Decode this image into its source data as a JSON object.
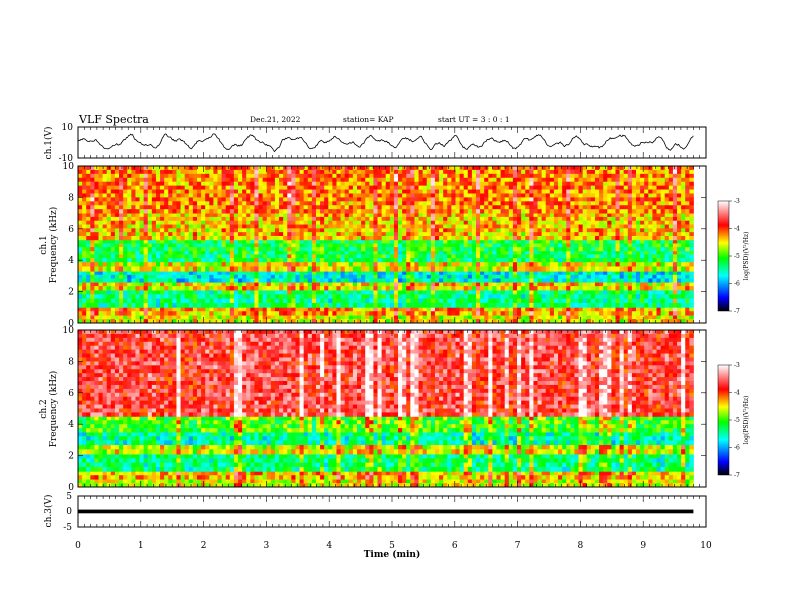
{
  "header": {
    "title": "VLF Spectra",
    "date": "Dec.21, 2022",
    "station": "station= KAP",
    "start": "start  UT =  3 : 0  : 1"
  },
  "chart_data": [
    {
      "id": "ch1-waveform",
      "type": "line",
      "ylabel": "ch.1(V)",
      "ylim": [
        -10,
        10
      ],
      "yticks": [
        "10",
        "-10"
      ],
      "xlim": [
        0,
        10
      ],
      "values_description_none": null,
      "series": [
        {
          "name": "ch.1",
          "color": "#000000",
          "mean": 0,
          "amplitude": 4
        }
      ]
    },
    {
      "id": "ch1-spectrogram",
      "type": "heatmap",
      "ylabel": "ch.1\nFrequency (kHz)",
      "ylabel_lines": [
        "ch.1",
        "Frequency (kHz)"
      ],
      "ylim": [
        0,
        10
      ],
      "yticks": [
        "0",
        "2",
        "4",
        "6",
        "8",
        "10"
      ],
      "xlim": [
        0,
        9.8
      ],
      "colorbar": {
        "label": "log(PSD)(V²/Hz)",
        "range": [
          -7,
          -3
        ],
        "ticks": [
          "-3",
          "-4",
          "-5",
          "-6",
          "-7"
        ]
      },
      "bands": [
        {
          "from": 0.0,
          "to": 0.5,
          "level": -4.6
        },
        {
          "from": 0.5,
          "to": 1.0,
          "level": -4.3
        },
        {
          "from": 1.0,
          "to": 2.1,
          "level": -5.4
        },
        {
          "from": 2.1,
          "to": 2.6,
          "level": -4.5
        },
        {
          "from": 2.6,
          "to": 3.3,
          "level": -5.7
        },
        {
          "from": 3.3,
          "to": 3.9,
          "level": -4.6
        },
        {
          "from": 3.9,
          "to": 4.6,
          "level": -5.3
        },
        {
          "from": 4.6,
          "to": 5.3,
          "level": -5.2
        },
        {
          "from": 5.3,
          "to": 7.0,
          "level": -4.4
        },
        {
          "from": 7.0,
          "to": 10.0,
          "level": -4.2
        }
      ]
    },
    {
      "id": "ch2-spectrogram",
      "type": "heatmap",
      "ylabel": "ch.2\nFrequency (kHz)",
      "ylabel_lines": [
        "ch.2",
        "Frequency (kHz)"
      ],
      "ylim": [
        0,
        10
      ],
      "yticks": [
        "0",
        "2",
        "4",
        "6",
        "8",
        "10"
      ],
      "xlim": [
        0,
        9.8
      ],
      "colorbar": {
        "label": "log(PSD)(V²/Hz)",
        "range": [
          -7,
          -3
        ],
        "ticks": [
          "-3",
          "-4",
          "-5",
          "-6",
          "-7"
        ]
      },
      "bands": [
        {
          "from": 0.0,
          "to": 0.5,
          "level": -4.6
        },
        {
          "from": 0.5,
          "to": 1.0,
          "level": -4.4
        },
        {
          "from": 1.0,
          "to": 2.1,
          "level": -5.4
        },
        {
          "from": 2.1,
          "to": 2.7,
          "level": -4.6
        },
        {
          "from": 2.7,
          "to": 3.5,
          "level": -5.5
        },
        {
          "from": 3.5,
          "to": 4.5,
          "level": -5.0
        },
        {
          "from": 4.5,
          "to": 10.0,
          "level": -3.7
        }
      ]
    },
    {
      "id": "ch3-waveform",
      "type": "line",
      "ylabel": "ch.3(V)",
      "ylim": [
        -5,
        5
      ],
      "yticks": [
        "5",
        "0",
        "-5"
      ],
      "xlim": [
        0,
        10
      ],
      "series": [
        {
          "name": "ch.3",
          "color": "#000000",
          "mean": 0,
          "amplitude": 0.3
        }
      ]
    }
  ],
  "xaxis": {
    "label": "Time  (min)",
    "ticks": [
      "0",
      "1",
      "2",
      "3",
      "4",
      "5",
      "6",
      "7",
      "8",
      "9",
      "10"
    ]
  },
  "colors": {
    "colormap": [
      "#000000",
      "#0000ff",
      "#00ffff",
      "#00ff00",
      "#ffff00",
      "#ff0000",
      "#ffffff"
    ]
  }
}
